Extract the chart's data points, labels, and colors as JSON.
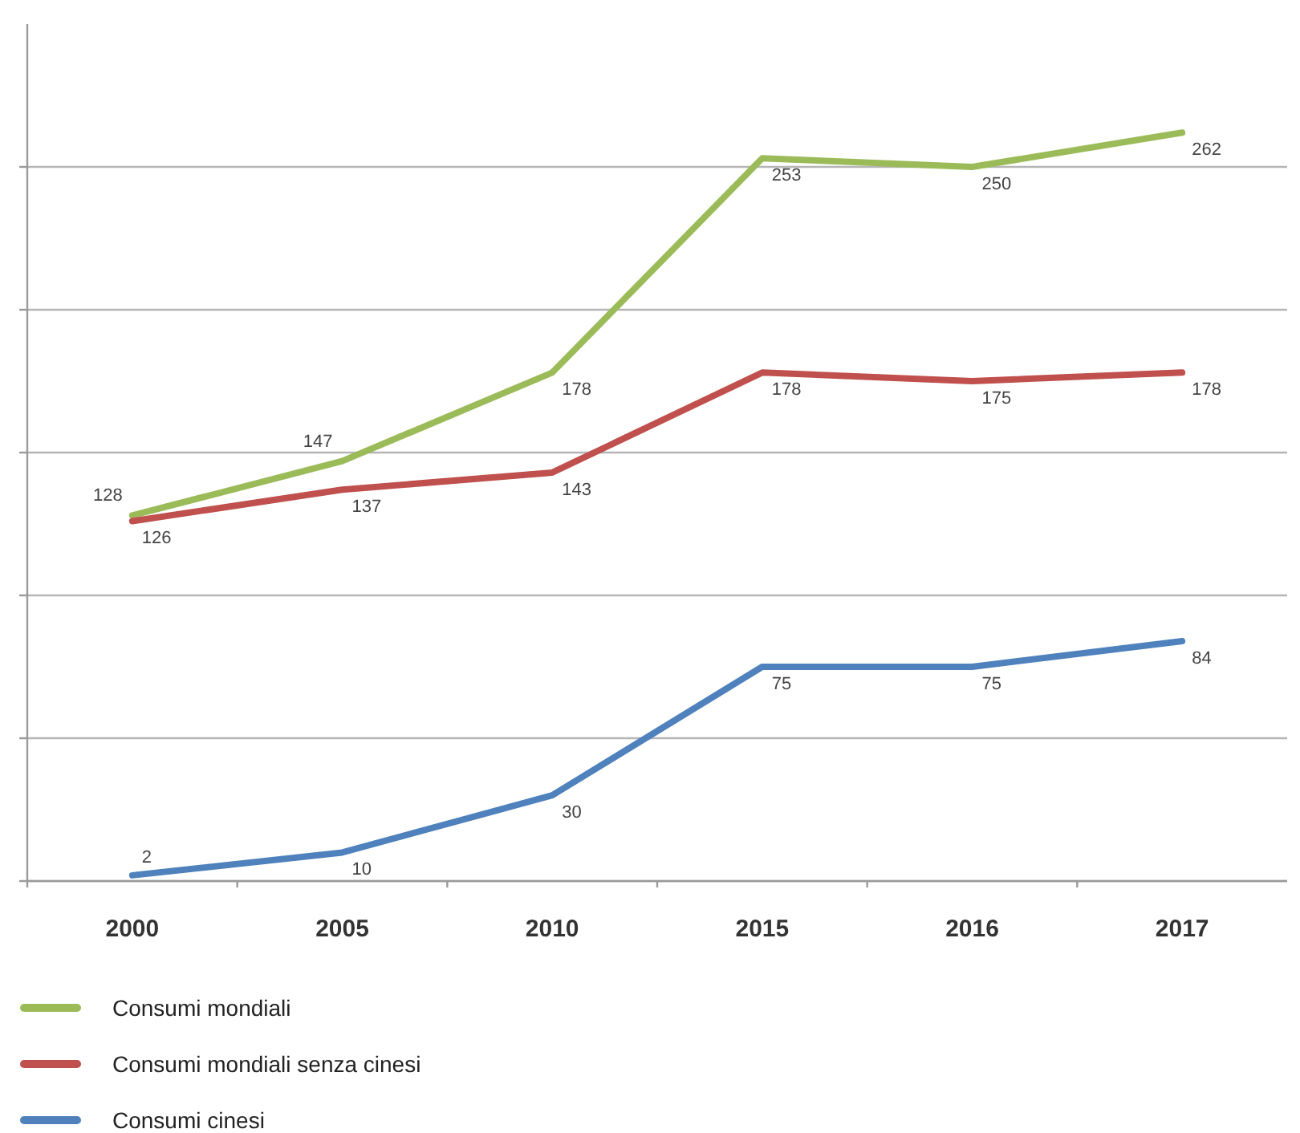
{
  "chart_data": {
    "type": "line",
    "categories": [
      "2000",
      "2005",
      "2010",
      "2015",
      "2016",
      "2017"
    ],
    "series": [
      {
        "name": "Consumi mondiali",
        "color": "#9bbb59",
        "values": [
          128,
          147,
          178,
          253,
          250,
          262
        ]
      },
      {
        "name": "Consumi mondiali senza cinesi",
        "color": "#c0504d",
        "values": [
          126,
          137,
          143,
          178,
          175,
          178
        ]
      },
      {
        "name": "Consumi cinesi",
        "color": "#4f81bd",
        "values": [
          2,
          10,
          30,
          75,
          75,
          84
        ]
      }
    ],
    "ylim": [
      0,
      300
    ],
    "yticks": [
      {
        "value": 0,
        "label": null
      },
      {
        "value": 50,
        "label": null
      },
      {
        "value": 100,
        "label": null
      },
      {
        "value": 150,
        "label": null
      },
      {
        "value": 200,
        "label": null
      },
      {
        "value": 250,
        "label": null
      }
    ],
    "grid": "y",
    "legend": "bottom",
    "tick_labels": "x",
    "data_labels": true
  }
}
